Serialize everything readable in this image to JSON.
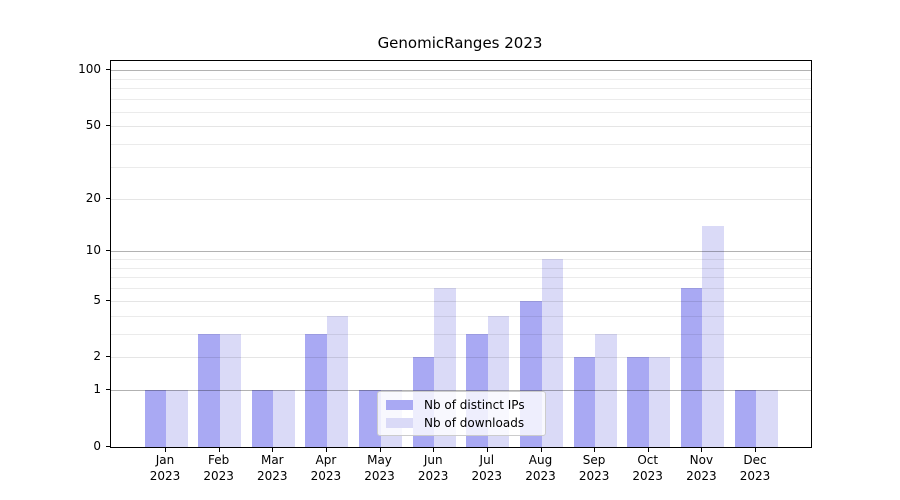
{
  "title": "GenomicRanges 2023",
  "legend": {
    "items": [
      {
        "label": "Nb of distinct IPs",
        "color": "#a9a9f3"
      },
      {
        "label": "Nb of downloads",
        "color": "#dadaf7"
      }
    ]
  },
  "axes": {
    "y_tick_labels": [
      "100",
      "50",
      "20",
      "10",
      "5",
      "2",
      "1",
      "0"
    ],
    "x_month_labels": [
      "Jan",
      "Feb",
      "Mar",
      "Apr",
      "May",
      "Jun",
      "Jul",
      "Aug",
      "Sep",
      "Oct",
      "Nov",
      "Dec"
    ],
    "x_year_label": "2023"
  },
  "chart_data": {
    "type": "bar",
    "title": "GenomicRanges 2023",
    "categories": [
      "Jan 2023",
      "Feb 2023",
      "Mar 2023",
      "Apr 2023",
      "May 2023",
      "Jun 2023",
      "Jul 2023",
      "Aug 2023",
      "Sep 2023",
      "Oct 2023",
      "Nov 2023",
      "Dec 2023"
    ],
    "series": [
      {
        "name": "Nb of distinct IPs",
        "color": "#a9a9f3",
        "values": [
          1,
          3,
          1,
          3,
          1,
          2,
          3,
          5,
          2,
          2,
          6,
          1
        ]
      },
      {
        "name": "Nb of downloads",
        "color": "#dadaf7",
        "values": [
          1,
          3,
          1,
          4,
          1,
          6,
          4,
          9,
          3,
          2,
          14,
          1
        ]
      }
    ],
    "xlabel": "",
    "ylabel": "",
    "y_scale": "log1p",
    "y_ticks": [
      0,
      1,
      2,
      5,
      10,
      20,
      50,
      100
    ],
    "y_gridlines_strong": [
      1,
      10,
      100
    ],
    "y_gridlines_soft": [
      2,
      5,
      20,
      50
    ],
    "y_gridlines_minor": [
      3,
      4,
      6,
      7,
      8,
      9,
      30,
      40,
      60,
      70,
      80,
      90
    ],
    "ylim": [
      0,
      112
    ],
    "grid": true,
    "legend_position": "lower center"
  }
}
